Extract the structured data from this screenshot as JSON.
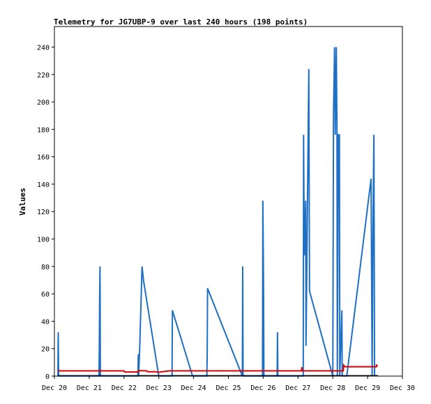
{
  "chart_data": {
    "type": "line",
    "title": "Telemetry for JG7UBP-9 over last 240 hours (198 points)",
    "ylabel": "Values",
    "xlabel": "",
    "ylim": [
      0,
      255
    ],
    "xlim": [
      0,
      10
    ],
    "x_ticks": [
      {
        "x": 0,
        "label": "Dec 20"
      },
      {
        "x": 1,
        "label": "Dec 21"
      },
      {
        "x": 2,
        "label": "Dec 22"
      },
      {
        "x": 3,
        "label": "Dec 23"
      },
      {
        "x": 4,
        "label": "Dec 24"
      },
      {
        "x": 5,
        "label": "Dec 25"
      },
      {
        "x": 6,
        "label": "Dec 26"
      },
      {
        "x": 7,
        "label": "Dec 27"
      },
      {
        "x": 8,
        "label": "Dec 28"
      },
      {
        "x": 9,
        "label": "Dec 29"
      },
      {
        "x": 10,
        "label": "Dec 30"
      }
    ],
    "y_ticks": [
      0,
      20,
      40,
      60,
      80,
      100,
      120,
      140,
      160,
      180,
      200,
      220,
      240
    ],
    "series": [
      {
        "color": "#1f6fc4",
        "points": [
          [
            0.1,
            0
          ],
          [
            0.11,
            32
          ],
          [
            0.12,
            0
          ],
          [
            1.28,
            0
          ],
          [
            1.29,
            20
          ],
          [
            1.3,
            60
          ],
          [
            1.31,
            80
          ],
          [
            1.32,
            0
          ],
          [
            2.4,
            0
          ],
          [
            2.41,
            16
          ],
          [
            2.42,
            0
          ],
          [
            2.45,
            20
          ],
          [
            2.52,
            80
          ],
          [
            2.56,
            70
          ],
          [
            3.0,
            0
          ],
          [
            3.38,
            0
          ],
          [
            3.39,
            48
          ],
          [
            3.97,
            0
          ],
          [
            4.38,
            0
          ],
          [
            4.39,
            16
          ],
          [
            4.4,
            64
          ],
          [
            5.4,
            0
          ],
          [
            5.41,
            80
          ],
          [
            5.42,
            0
          ],
          [
            5.98,
            0
          ],
          [
            5.99,
            128
          ],
          [
            6.01,
            64
          ],
          [
            6.02,
            0
          ],
          [
            6.4,
            0
          ],
          [
            6.41,
            32
          ],
          [
            6.42,
            0
          ],
          [
            7.15,
            0
          ],
          [
            7.16,
            176
          ],
          [
            7.18,
            88
          ],
          [
            7.2,
            106
          ],
          [
            7.22,
            128
          ],
          [
            7.23,
            22
          ],
          [
            7.31,
            224
          ],
          [
            7.33,
            62
          ],
          [
            8.0,
            0
          ],
          [
            8.02,
            192
          ],
          [
            8.05,
            240
          ],
          [
            8.07,
            176
          ],
          [
            8.1,
            240
          ],
          [
            8.12,
            180
          ],
          [
            8.13,
            0
          ],
          [
            8.16,
            176
          ],
          [
            8.19,
            176
          ],
          [
            8.2,
            0
          ],
          [
            8.26,
            48
          ],
          [
            8.27,
            0
          ],
          [
            8.4,
            0
          ],
          [
            9.1,
            144
          ],
          [
            9.13,
            0
          ],
          [
            9.15,
            96
          ],
          [
            9.18,
            176
          ],
          [
            9.2,
            0
          ]
        ]
      },
      {
        "color": "#dd0000",
        "points": [
          [
            0.1,
            3.8
          ],
          [
            2.0,
            3.8
          ],
          [
            2.02,
            3.0
          ],
          [
            2.4,
            3.0
          ],
          [
            2.42,
            4.0
          ],
          [
            2.65,
            3.8
          ],
          [
            2.68,
            3.2
          ],
          [
            2.9,
            3.2
          ],
          [
            3.0,
            2.8
          ],
          [
            3.2,
            3.5
          ],
          [
            3.3,
            3.8
          ],
          [
            7.1,
            3.8
          ],
          [
            7.11,
            6.5
          ],
          [
            7.12,
            3.8
          ],
          [
            8.3,
            3.8
          ],
          [
            8.31,
            8.0
          ],
          [
            8.35,
            6.8
          ],
          [
            9.25,
            6.8
          ],
          [
            9.26,
            8.5
          ],
          [
            9.27,
            6.8
          ]
        ]
      },
      {
        "color": "#000000",
        "points": [
          [
            0.1,
            0.3
          ],
          [
            9.3,
            0.3
          ]
        ]
      }
    ]
  }
}
